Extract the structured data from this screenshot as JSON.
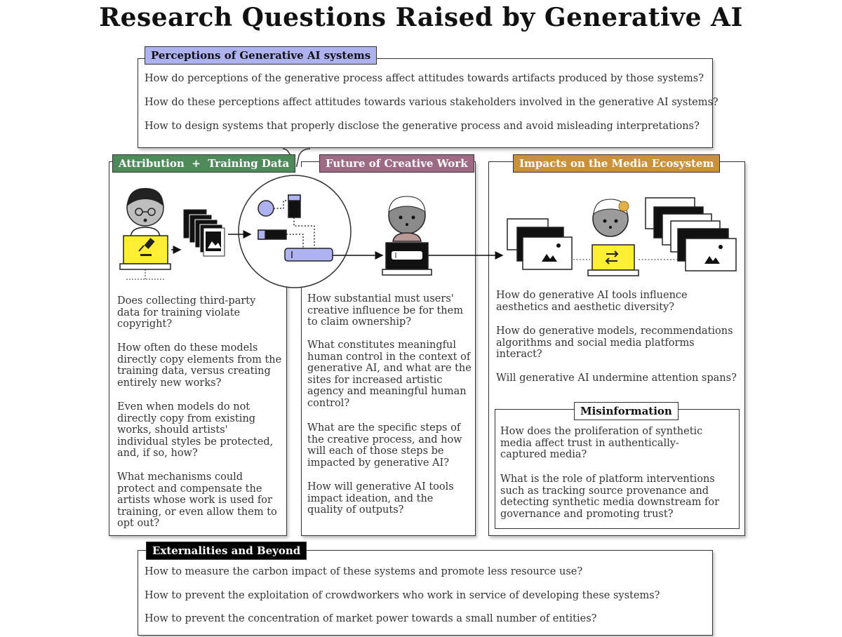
{
  "title": "Research Questions Raised by Generative AI",
  "colors": {
    "perceptions": "#aeb2ee",
    "attribution": "#4f8a5a",
    "future": "#9d6b84",
    "impacts": "#c9913c",
    "externalities": "#000000",
    "screen_yellow": "#ffee33",
    "node_blue": "#aeb2ee"
  },
  "perceptions": {
    "label": "Perceptions of Generative AI systems",
    "questions": [
      "How do perceptions of the generative process affect attitudes towards artifacts produced by those systems?",
      "How do these perceptions affect attitudes towards various stakeholders involved in the generative AI systems?",
      "How to design systems that properly disclose the generative process and avoid misleading interpretations?"
    ]
  },
  "attribution": {
    "label": "Attribution  +  Training Data",
    "questions": [
      "Does collecting third-party data for training violate copyright?",
      "How often do these models directly copy elements from the training data, versus creating entirely new works?",
      "Even when models do not directly copy from existing works, should artists' individual styles be protected, and, if so, how?",
      "What mechanisms could protect and compensate the artists whose work is used for training, or even allow them to opt out?"
    ]
  },
  "future": {
    "label": "Future of Creative Work",
    "questions": [
      "How substantial must users' creative influence be for them to claim ownership?",
      "What constitutes meaningful human control in the context of generative AI, and what are the sites for increased artistic agency and meaningful human control?",
      "What are the specific steps of the creative process, and how will each of those steps be impacted by generative AI?",
      "How will generative AI tools impact ideation, and the quality of outputs?"
    ]
  },
  "impacts": {
    "label": "Impacts on the Media Ecosystem",
    "questions": [
      "How do generative AI tools influence aesthetics and aesthetic diversity?",
      "How do generative models, recommendations algorithms and social media platforms interact?",
      "Will generative AI undermine attention spans?"
    ],
    "misinformation": {
      "label": "Misinformation",
      "questions": [
        "How does the proliferation of synthetic media affect trust in authentically-captured media?",
        "What is the role of platform interventions such as tracking source provenance and detecting synthetic media downstream for governance and promoting trust?"
      ]
    }
  },
  "externalities": {
    "label": "Externalities and Beyond",
    "questions": [
      "How to measure the carbon impact of these systems and promote less resource use?",
      "How to prevent the exploitation of crowdworkers who work in service of developing these systems?",
      "How to prevent the concentration of market power towards a small number of entities?"
    ]
  }
}
